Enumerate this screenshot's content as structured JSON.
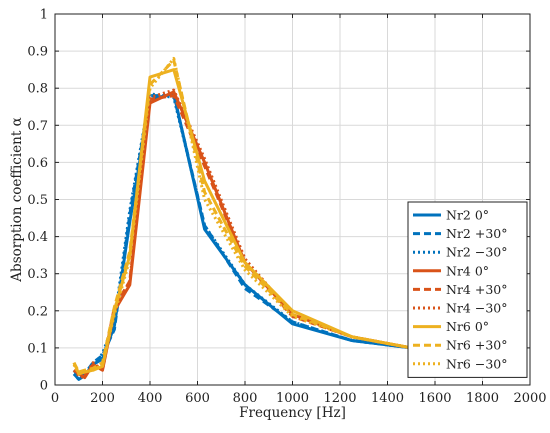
{
  "chart_data": {
    "type": "line",
    "xlabel": "Frequency [Hz]",
    "ylabel": "Absorption coefficient α",
    "xlim": [
      0,
      2000
    ],
    "ylim": [
      0,
      1
    ],
    "xticks": [
      0,
      200,
      400,
      600,
      800,
      1000,
      1200,
      1400,
      1600,
      1800,
      2000
    ],
    "yticks": [
      0,
      0.1,
      0.2,
      0.3,
      0.4,
      0.5,
      0.6,
      0.7,
      0.8,
      0.9,
      1
    ],
    "xtick_labels": [
      "0",
      "200",
      "400",
      "600",
      "800",
      "1000",
      "1200",
      "1400",
      "1600",
      "1800",
      "2000"
    ],
    "ytick_labels": [
      "0",
      "0.1",
      "0.2",
      "0.3",
      "0.4",
      "0.5",
      "0.6",
      "0.7",
      "0.8",
      "0.9",
      "1"
    ],
    "grid": true,
    "legend_position": "right",
    "series": [
      {
        "name": "Nr2 0°",
        "color": "#0072BD",
        "style": "solid",
        "x": [
          80,
          100,
          125,
          160,
          200,
          250,
          315,
          400,
          500,
          630,
          800,
          1000,
          1250,
          1500
        ],
        "y": [
          0.03,
          0.015,
          0.025,
          0.055,
          0.07,
          0.16,
          0.44,
          0.77,
          0.785,
          0.42,
          0.27,
          0.165,
          0.12,
          0.1
        ]
      },
      {
        "name": "Nr2 +30°",
        "color": "#0072BD",
        "style": "dashed",
        "x": [
          80,
          100,
          125,
          160,
          200,
          250,
          315,
          400,
          500,
          630,
          800,
          1000,
          1250,
          1500
        ],
        "y": [
          0.04,
          0.02,
          0.03,
          0.06,
          0.08,
          0.15,
          0.46,
          0.78,
          0.78,
          0.43,
          0.26,
          0.17,
          0.12,
          0.1
        ]
      },
      {
        "name": "Nr2 −30°",
        "color": "#0072BD",
        "style": "dotted",
        "x": [
          80,
          100,
          125,
          160,
          200,
          250,
          315,
          400,
          500,
          630,
          800,
          1000,
          1250,
          1500
        ],
        "y": [
          0.03,
          0.015,
          0.03,
          0.05,
          0.085,
          0.17,
          0.47,
          0.785,
          0.775,
          0.43,
          0.27,
          0.17,
          0.12,
          0.1
        ]
      },
      {
        "name": "Nr4 0°",
        "color": "#D95319",
        "style": "solid",
        "x": [
          80,
          100,
          125,
          160,
          200,
          250,
          315,
          400,
          500,
          630,
          800,
          1000,
          1250,
          1500
        ],
        "y": [
          0.04,
          0.03,
          0.02,
          0.055,
          0.04,
          0.2,
          0.27,
          0.76,
          0.79,
          0.6,
          0.33,
          0.19,
          0.13,
          0.1
        ]
      },
      {
        "name": "Nr4 +30°",
        "color": "#D95319",
        "style": "dashed",
        "x": [
          80,
          100,
          125,
          160,
          200,
          250,
          315,
          400,
          500,
          630,
          800,
          1000,
          1250,
          1500
        ],
        "y": [
          0.04,
          0.03,
          0.025,
          0.05,
          0.045,
          0.21,
          0.28,
          0.77,
          0.78,
          0.59,
          0.33,
          0.185,
          0.13,
          0.1
        ]
      },
      {
        "name": "Nr4 −30°",
        "color": "#D95319",
        "style": "dotted",
        "x": [
          80,
          100,
          125,
          160,
          200,
          250,
          315,
          400,
          500,
          630,
          800,
          1000,
          1250,
          1500
        ],
        "y": [
          0.04,
          0.025,
          0.02,
          0.06,
          0.04,
          0.2,
          0.28,
          0.775,
          0.795,
          0.61,
          0.34,
          0.19,
          0.13,
          0.1
        ]
      },
      {
        "name": "Nr6 0°",
        "color": "#EDB120",
        "style": "solid",
        "x": [
          80,
          100,
          125,
          160,
          200,
          250,
          315,
          400,
          500,
          630,
          800,
          1000,
          1250,
          1500
        ],
        "y": [
          0.06,
          0.03,
          0.035,
          0.04,
          0.05,
          0.2,
          0.35,
          0.83,
          0.85,
          0.55,
          0.33,
          0.2,
          0.13,
          0.1
        ]
      },
      {
        "name": "Nr6 +30°",
        "color": "#EDB120",
        "style": "dashed",
        "x": [
          80,
          100,
          125,
          160,
          200,
          250,
          315,
          400,
          500,
          630,
          800,
          1000,
          1250,
          1500
        ],
        "y": [
          0.06,
          0.035,
          0.04,
          0.045,
          0.06,
          0.21,
          0.36,
          0.81,
          0.875,
          0.52,
          0.32,
          0.19,
          0.13,
          0.1
        ]
      },
      {
        "name": "Nr6 −30°",
        "color": "#EDB120",
        "style": "dotted",
        "x": [
          80,
          100,
          125,
          160,
          200,
          250,
          315,
          400,
          500,
          630,
          800,
          1000,
          1250,
          1500
        ],
        "y": [
          0.055,
          0.03,
          0.035,
          0.04,
          0.055,
          0.19,
          0.34,
          0.8,
          0.88,
          0.5,
          0.31,
          0.185,
          0.13,
          0.1
        ]
      }
    ]
  }
}
